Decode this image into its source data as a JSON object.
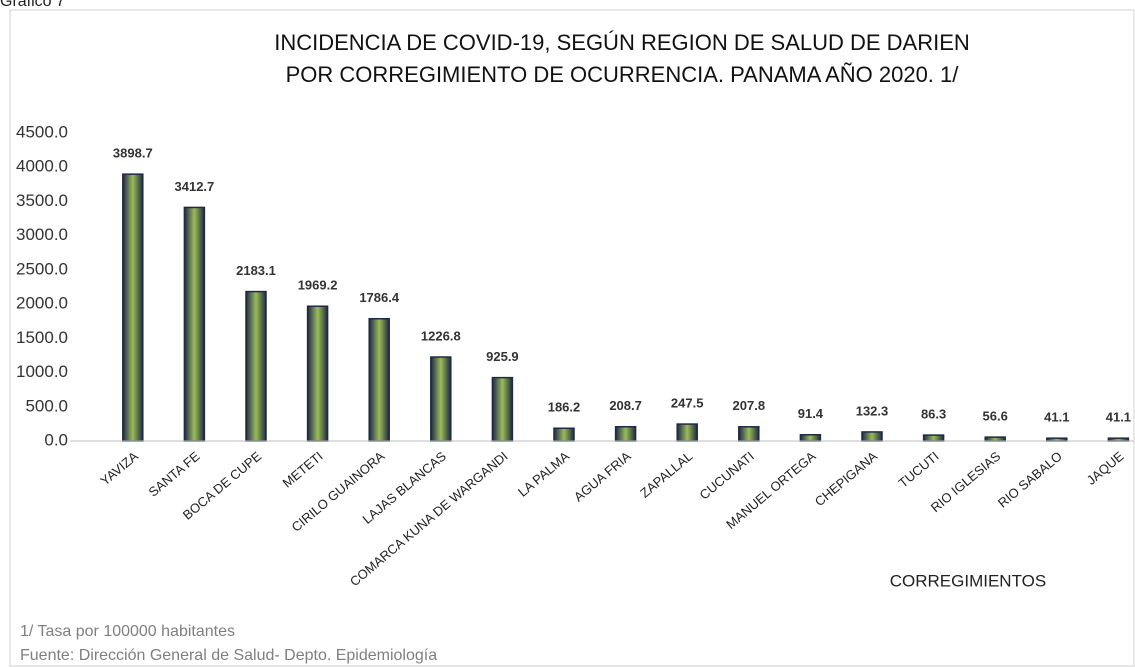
{
  "chart_data": {
    "type": "bar",
    "figure_label": "Gráfico 7",
    "title": [
      "INCIDENCIA DE COVID-19, SEGÚN REGION DE SALUD DE DARIEN",
      "POR CORREGIMIENTO DE OCURRENCIA. PANAMA AÑO 2020. 1/"
    ],
    "x_label": "CORREGIMIENTOS",
    "notes": [
      "1/ Tasa por 100000 habitantes",
      "Fuente: Dirección General de Salud- Depto. Epidemiología"
    ],
    "categories": [
      "YAVIZA",
      "SANTA FE",
      "BOCA DE CUPE",
      "METETI",
      "CIRILO GUAINORA",
      "LAJAS BLANCAS",
      "COMARCA KUNA DE WARGANDI",
      "LA PALMA",
      "AGUA FRIA",
      "ZAPALLAL",
      "CUCUNATI",
      "MANUEL ORTEGA",
      "CHEPIGANA",
      "TUCUTI",
      "RIO IGLESIAS",
      "RIO SABALO",
      "JAQUE"
    ],
    "values": [
      3898.7,
      3412.7,
      2183.1,
      1969.2,
      1786.4,
      1226.8,
      925.9,
      186.2,
      208.7,
      247.5,
      207.8,
      91.4,
      132.3,
      86.3,
      56.6,
      41.1,
      41.1
    ],
    "color": "#9bbb59",
    "edge_color": "#1f2a44",
    "ylim": [
      0,
      4500
    ],
    "yticks": [
      {
        "value": 0,
        "label": "0.0"
      },
      {
        "value": 500,
        "label": "500.0"
      },
      {
        "value": 1000,
        "label": "1000.0"
      },
      {
        "value": 1500,
        "label": "1500.0"
      },
      {
        "value": 2000,
        "label": "2000.0"
      },
      {
        "value": 2500,
        "label": "2500.0"
      },
      {
        "value": 3000,
        "label": "3000.0"
      },
      {
        "value": 3500,
        "label": "3500.0"
      },
      {
        "value": 4000,
        "label": "4000.0"
      },
      {
        "value": 4500,
        "label": "4500.0"
      }
    ],
    "grid": false
  }
}
